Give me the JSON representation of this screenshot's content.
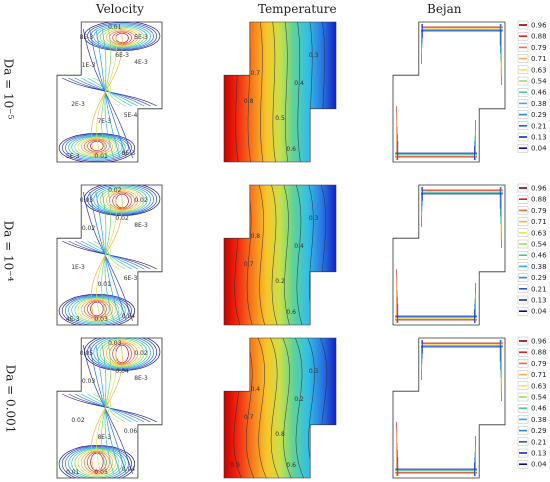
{
  "columns": [
    "Velocity",
    "Temperature",
    "Bejan"
  ],
  "rows": [
    {
      "label": "Da = 10⁻⁵",
      "velocity_labels": [
        "0.01",
        "8E-3",
        "1E-3",
        "6E-3",
        "4E-3",
        "2E-3",
        "7E-3",
        "5E-4",
        "5E-3",
        "0.01",
        "8E-3",
        "5E-3"
      ],
      "temperature_labels": [
        "0.3",
        "0.4",
        "0.7",
        "0.8",
        "0.6",
        "0.5"
      ]
    },
    {
      "label": "Da = 10⁻⁴",
      "velocity_labels": [
        "0.02",
        "0.03",
        "0.02",
        "0.02",
        "8E-3",
        "1E-3",
        "0.01",
        "6E-3",
        "4E-3",
        "0.03",
        "0.04",
        "0.02"
      ],
      "temperature_labels": [
        "0.3",
        "0.4",
        "0.8",
        "0.7",
        "0.6",
        "0.2"
      ]
    },
    {
      "label": "Da = 0.001",
      "velocity_labels": [
        "0.03",
        "0.05",
        "0.03",
        "0.04",
        "8E-3",
        "0.02",
        "8E-3",
        "0.06",
        "0.01",
        "0.05",
        "0.04",
        "0.02"
      ],
      "temperature_labels": [
        "0.3",
        "0.2",
        "0.4",
        "0.7",
        "0.6",
        "0.8",
        "0.9"
      ]
    }
  ],
  "colorbar": {
    "ticks": [
      "0.96",
      "0.88",
      "0.79",
      "0.71",
      "0.63",
      "0.54",
      "0.46",
      "0.38",
      "0.29",
      "0.21",
      "0.13",
      "0.04"
    ],
    "colors": [
      "#8b0000",
      "#d8202a",
      "#f26d3a",
      "#f7b047",
      "#f4e44a",
      "#a9db5a",
      "#4cc79d",
      "#2ab2d9",
      "#2a86e0",
      "#2a55d8",
      "#1c2bbf",
      "#0a0a8a"
    ]
  }
}
